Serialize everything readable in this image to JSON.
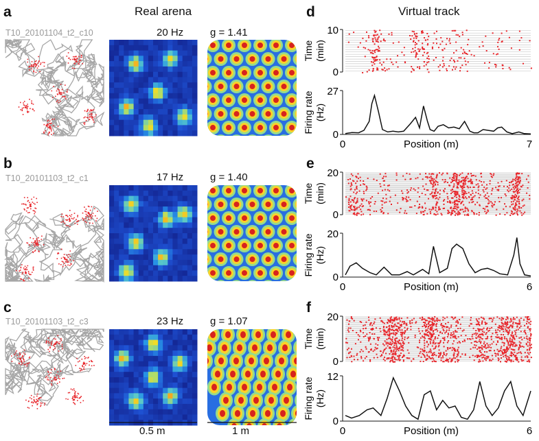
{
  "headers": {
    "real": "Real arena",
    "virtual": "Virtual track"
  },
  "panels": {
    "a": {
      "label": "a",
      "cell": "T10_20101104_t2_c10",
      "peak": "20 Hz",
      "g": "g = 1.41"
    },
    "b": {
      "label": "b",
      "cell": "T10_20101103_t2_c1",
      "peak": "17 Hz",
      "g": "g = 1.40"
    },
    "c": {
      "label": "c",
      "cell": "T10_20101103_t2_c3",
      "peak": "23 Hz",
      "g": "g = 1.07"
    },
    "d": {
      "label": "d"
    },
    "e": {
      "label": "e"
    },
    "f": {
      "label": "f"
    }
  },
  "scalebars": {
    "rate_map": "0.5 m",
    "autocorr": "1 m"
  },
  "colors": {
    "spikes": "#e8262b",
    "trajectory": "#a6a6a6",
    "curve": "#111111",
    "map_low": "#1a2a9a",
    "map_high": "#d01010"
  },
  "chart_data": [
    {
      "type": "raster+line",
      "panel": "d",
      "raster": {
        "ylabel": "Time\n(min)",
        "ylabel_lines": [
          "Time",
          "(min)"
        ],
        "ylim": [
          0,
          10
        ],
        "yticks": [
          "0",
          "10"
        ]
      },
      "rate": {
        "ylabel_lines": [
          "Firing rate",
          "(Hz)"
        ],
        "xlabel": "Position (m)",
        "xlim": [
          0,
          7
        ],
        "ylim": [
          0,
          27
        ],
        "xticks": [
          "0",
          "7"
        ],
        "yticks": [
          "0",
          "27"
        ],
        "x": [
          0,
          0.25,
          0.5,
          0.7,
          0.9,
          1.0,
          1.1,
          1.25,
          1.4,
          1.6,
          1.8,
          2.0,
          2.2,
          2.45,
          2.65,
          2.8,
          2.95,
          3.1,
          3.2,
          3.35,
          3.5,
          3.7,
          3.9,
          4.1,
          4.3,
          4.5,
          4.7,
          4.85,
          5.0,
          5.2,
          5.4,
          5.6,
          5.75,
          5.9,
          6.1,
          6.3,
          6.55,
          6.75,
          7.0
        ],
        "y": [
          0.5,
          1.2,
          1.0,
          2.5,
          8,
          19,
          24,
          14,
          3,
          1.5,
          2,
          1.5,
          2,
          6.5,
          10.5,
          4,
          17.5,
          8,
          3,
          2,
          5,
          6,
          4,
          4.5,
          3.5,
          8,
          2,
          1,
          1,
          3,
          2.5,
          2,
          4,
          4.5,
          1.5,
          0.5,
          1.5,
          0.5,
          0.3
        ]
      }
    },
    {
      "type": "raster+line",
      "panel": "e",
      "raster": {
        "ylabel_lines": [
          "Time",
          "(min)"
        ],
        "ylim": [
          0,
          20
        ],
        "yticks": [
          "0",
          "20"
        ]
      },
      "rate": {
        "ylabel_lines": [
          "Firing rate",
          "(Hz)"
        ],
        "xlabel": "Position (m)",
        "xlim": [
          0,
          6
        ],
        "ylim": [
          0,
          20
        ],
        "xticks": [
          "0",
          "6"
        ],
        "yticks": [
          "0",
          "20"
        ],
        "x": [
          0,
          0.15,
          0.35,
          0.55,
          0.8,
          1.0,
          1.25,
          1.5,
          1.75,
          2.0,
          2.2,
          2.5,
          2.7,
          2.85,
          3.05,
          3.3,
          3.45,
          3.6,
          3.8,
          4.0,
          4.2,
          4.4,
          4.6,
          4.8,
          5.0,
          5.25,
          5.45,
          5.55,
          5.65,
          5.8,
          6.0
        ],
        "y": [
          1,
          5,
          6.5,
          4,
          2,
          1,
          4.5,
          1,
          1,
          2.5,
          1,
          3.5,
          1.5,
          14,
          2,
          4,
          13,
          15,
          13,
          6,
          2,
          3.5,
          4,
          3,
          1.5,
          1,
          10,
          18,
          6,
          1,
          0.5
        ]
      }
    },
    {
      "type": "raster+line",
      "panel": "f",
      "raster": {
        "ylabel_lines": [
          "Time",
          "(min)"
        ],
        "ylim": [
          0,
          20
        ],
        "yticks": [
          "0",
          "20"
        ]
      },
      "rate": {
        "ylabel_lines": [
          "Firing rate",
          "(Hz)"
        ],
        "xlabel": "Position (m)",
        "xlim": [
          0,
          6
        ],
        "ylim": [
          0,
          12
        ],
        "xticks": [
          "0",
          "6"
        ],
        "yticks": [
          "0",
          "12"
        ],
        "x": [
          0,
          0.2,
          0.45,
          0.7,
          0.9,
          1.15,
          1.35,
          1.55,
          1.75,
          1.95,
          2.15,
          2.35,
          2.55,
          2.75,
          2.95,
          3.15,
          3.35,
          3.55,
          3.75,
          3.95,
          4.15,
          4.35,
          4.55,
          4.75,
          4.95,
          5.15,
          5.35,
          5.55,
          5.75,
          6.0
        ],
        "y": [
          1.5,
          0.8,
          1.5,
          3,
          3.5,
          1.5,
          6,
          11.5,
          8,
          4,
          1.5,
          0.5,
          7,
          8,
          3,
          5.5,
          3.5,
          4,
          1,
          0.5,
          3,
          10.5,
          4,
          1.5,
          3.5,
          8,
          10.5,
          4,
          1.5,
          8
        ]
      }
    }
  ]
}
